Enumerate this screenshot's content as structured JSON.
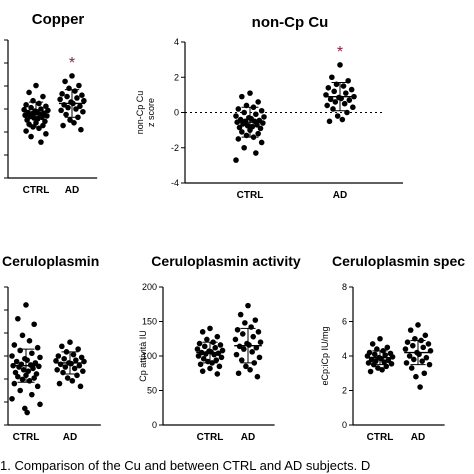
{
  "chart_data": [
    {
      "type": "scatter",
      "title": "Copper",
      "ylabel": "",
      "categories": [
        "CTRL",
        "AD"
      ],
      "significance": [
        "",
        "*"
      ],
      "y_ticks_visible": false,
      "ylim": [
        0,
        10
      ],
      "groups": [
        {
          "name": "CTRL",
          "mean": 4.6,
          "sd": 0.9,
          "values": [
            6.7,
            6.2,
            5.9,
            5.6,
            5.4,
            5.3,
            5.2,
            5.1,
            5.0,
            4.95,
            4.9,
            4.85,
            4.8,
            4.75,
            4.7,
            4.65,
            4.6,
            4.55,
            4.5,
            4.45,
            4.4,
            4.35,
            4.3,
            4.2,
            4.1,
            4.0,
            3.9,
            3.8,
            3.7,
            3.6,
            3.4,
            3.2,
            3.0,
            2.6
          ]
        },
        {
          "name": "AD",
          "mean": 5.4,
          "sd": 1.0,
          "values": [
            7.4,
            7.0,
            6.7,
            6.5,
            6.3,
            6.1,
            6.0,
            5.9,
            5.8,
            5.7,
            5.6,
            5.5,
            5.4,
            5.3,
            5.2,
            5.1,
            5.0,
            4.9,
            4.8,
            4.6,
            4.4,
            4.2,
            4.0,
            3.8,
            3.5
          ]
        }
      ]
    },
    {
      "type": "scatter",
      "title": "non-Cp Cu",
      "ylabel": "non-Cp Cu\nz score",
      "categories": [
        "CTRL",
        "AD"
      ],
      "significance": [
        "",
        "*"
      ],
      "ylim": [
        -4,
        4
      ],
      "yticks": [
        -4,
        -2,
        0,
        2,
        4
      ],
      "reference_line": 0,
      "groups": [
        {
          "name": "CTRL",
          "mean": -0.55,
          "sd": 0.85,
          "values": [
            1.1,
            0.9,
            0.6,
            0.4,
            0.3,
            0.2,
            0.1,
            0.0,
            -0.1,
            -0.2,
            -0.25,
            -0.3,
            -0.35,
            -0.4,
            -0.45,
            -0.5,
            -0.5,
            -0.55,
            -0.6,
            -0.65,
            -0.7,
            -0.75,
            -0.8,
            -0.85,
            -0.9,
            -1.0,
            -1.1,
            -1.2,
            -1.3,
            -1.4,
            -1.5,
            -1.7,
            -2.0,
            -2.3,
            -2.7
          ]
        },
        {
          "name": "AD",
          "mean": 0.9,
          "sd": 0.8,
          "values": [
            2.7,
            2.0,
            1.8,
            1.6,
            1.5,
            1.4,
            1.3,
            1.2,
            1.1,
            1.0,
            0.9,
            0.85,
            0.8,
            0.75,
            0.7,
            0.6,
            0.5,
            0.4,
            0.3,
            0.2,
            0.0,
            -0.2,
            -0.4,
            -0.5
          ]
        }
      ]
    },
    {
      "type": "scatter",
      "title": "Ceruloplasmin",
      "ylabel": "",
      "categories": [
        "CTRL",
        "AD"
      ],
      "y_ticks_visible": false,
      "ylim": [
        0,
        10
      ],
      "groups": [
        {
          "name": "CTRL",
          "mean": 4.3,
          "sd": 1.2,
          "values": [
            8.7,
            7.7,
            7.3,
            6.5,
            6.1,
            5.8,
            5.6,
            5.4,
            5.2,
            5.0,
            4.9,
            4.8,
            4.7,
            4.6,
            4.5,
            4.4,
            4.35,
            4.3,
            4.25,
            4.2,
            4.1,
            4.0,
            3.9,
            3.8,
            3.7,
            3.6,
            3.5,
            3.4,
            3.3,
            3.2,
            3.0,
            2.8,
            2.5,
            2.2,
            1.9,
            1.5,
            1.2,
            0.9
          ]
        },
        {
          "name": "AD",
          "mean": 4.5,
          "sd": 0.8,
          "values": [
            6.0,
            5.7,
            5.5,
            5.3,
            5.1,
            5.0,
            4.9,
            4.8,
            4.7,
            4.65,
            4.6,
            4.5,
            4.45,
            4.4,
            4.3,
            4.2,
            4.1,
            4.0,
            3.9,
            3.8,
            3.6,
            3.4,
            3.2,
            3.0,
            2.8
          ]
        }
      ]
    },
    {
      "type": "scatter",
      "title": "Ceruloplasmin activity",
      "ylabel": "Cp attività IU",
      "categories": [
        "CTRL",
        "AD"
      ],
      "ylim": [
        0,
        200
      ],
      "yticks": [
        0,
        50,
        100,
        150,
        200
      ],
      "groups": [
        {
          "name": "CTRL",
          "mean": 105,
          "sd": 15,
          "values": [
            140,
            135,
            128,
            124,
            120,
            118,
            116,
            114,
            112,
            110,
            108,
            107,
            106,
            105,
            104,
            103,
            102,
            100,
            98,
            96,
            94,
            92,
            90,
            88,
            85,
            82,
            78,
            74
          ]
        },
        {
          "name": "AD",
          "mean": 115,
          "sd": 25,
          "values": [
            173,
            160,
            152,
            148,
            142,
            138,
            135,
            132,
            128,
            124,
            120,
            118,
            116,
            114,
            112,
            110,
            106,
            102,
            98,
            94,
            90,
            85,
            80,
            75,
            70
          ]
        }
      ]
    },
    {
      "type": "scatter",
      "title": "Ceruloplasmin spec",
      "ylabel": "eCp:iCp IU/mg",
      "categories": [
        "CTRL",
        "AD"
      ],
      "ylim": [
        0,
        8
      ],
      "yticks": [
        0,
        2,
        4,
        6,
        8
      ],
      "groups": [
        {
          "name": "CTRL",
          "mean": 3.9,
          "sd": 0.4,
          "values": [
            5.0,
            4.7,
            4.5,
            4.4,
            4.3,
            4.2,
            4.15,
            4.1,
            4.05,
            4.0,
            3.95,
            3.9,
            3.85,
            3.8,
            3.75,
            3.7,
            3.65,
            3.6,
            3.55,
            3.5,
            3.4,
            3.3,
            3.2,
            3.1
          ]
        },
        {
          "name": "AD",
          "mean": 4.2,
          "sd": 0.7,
          "values": [
            5.8,
            5.5,
            5.2,
            5.0,
            4.9,
            4.8,
            4.7,
            4.6,
            4.5,
            4.4,
            4.3,
            4.2,
            4.1,
            4.0,
            3.9,
            3.8,
            3.7,
            3.6,
            3.5,
            3.3,
            3.0,
            2.8,
            2.2
          ]
        }
      ]
    }
  ],
  "caption": "1. Comparison of the Cu and between CTRL and AD subjects. D"
}
